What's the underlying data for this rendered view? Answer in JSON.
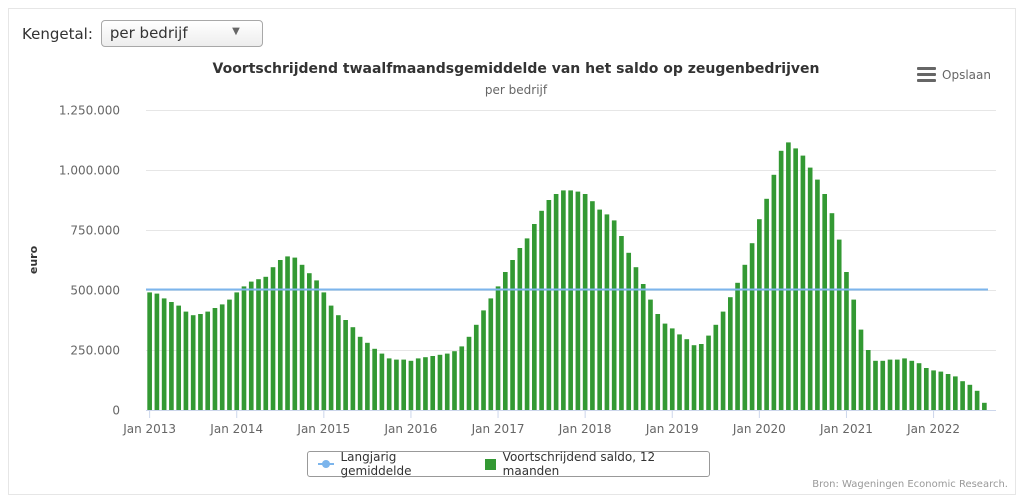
{
  "controls": {
    "kengetal_label": "Kengetal:",
    "kengetal_value": "per bedrijf",
    "export_label": "Opslaan"
  },
  "credits": "Bron: Wageningen Economic Research.",
  "colors": {
    "bar": "#339933",
    "average_line": "#7cb5ec",
    "grid": "#e6e6e6",
    "axis_text": "#666666"
  },
  "chart_data": {
    "type": "bar",
    "title": "Voortschrijdend twaalfmaandsgemiddelde van het saldo op zeugenbedrijven",
    "subtitle": "per bedrijf",
    "ylabel": "euro",
    "xlabel": "",
    "ylim": [
      0,
      1250000
    ],
    "yticks": [
      0,
      250000,
      500000,
      750000,
      1000000,
      1250000
    ],
    "ytick_labels": [
      "0",
      "250.000",
      "500.000",
      "750.000",
      "1.000.000",
      "1.250.000"
    ],
    "xtick_labels": [
      "Jan 2013",
      "Jan 2014",
      "Jan 2015",
      "Jan 2016",
      "Jan 2017",
      "Jan 2018",
      "Jan 2019",
      "Jan 2020",
      "Jan 2021",
      "Jan 2022"
    ],
    "first_period": "Jan 2013",
    "legend_position": "bottom-center",
    "grid": true,
    "series": [
      {
        "name": "Langjarig gemiddelde",
        "type": "line",
        "value": 505000
      },
      {
        "name": "Voortschrijdend saldo, 12 maanden",
        "type": "bar",
        "values": [
          490000,
          485000,
          465000,
          450000,
          435000,
          410000,
          395000,
          400000,
          410000,
          425000,
          440000,
          460000,
          490000,
          515000,
          535000,
          545000,
          555000,
          595000,
          625000,
          640000,
          635000,
          605000,
          570000,
          540000,
          490000,
          435000,
          395000,
          375000,
          345000,
          305000,
          280000,
          255000,
          235000,
          215000,
          210000,
          210000,
          205000,
          215000,
          220000,
          225000,
          230000,
          235000,
          245000,
          265000,
          305000,
          355000,
          415000,
          465000,
          515000,
          575000,
          625000,
          675000,
          715000,
          775000,
          830000,
          875000,
          900000,
          915000,
          915000,
          910000,
          900000,
          870000,
          835000,
          815000,
          790000,
          725000,
          655000,
          595000,
          525000,
          460000,
          400000,
          360000,
          340000,
          315000,
          295000,
          270000,
          275000,
          310000,
          355000,
          410000,
          470000,
          530000,
          605000,
          695000,
          795000,
          880000,
          980000,
          1080000,
          1115000,
          1090000,
          1060000,
          1010000,
          960000,
          900000,
          820000,
          710000,
          575000,
          460000,
          335000,
          250000,
          205000,
          205000,
          210000,
          210000,
          215000,
          205000,
          195000,
          175000,
          165000,
          160000,
          150000,
          140000,
          120000,
          105000,
          80000,
          30000
        ]
      }
    ]
  }
}
